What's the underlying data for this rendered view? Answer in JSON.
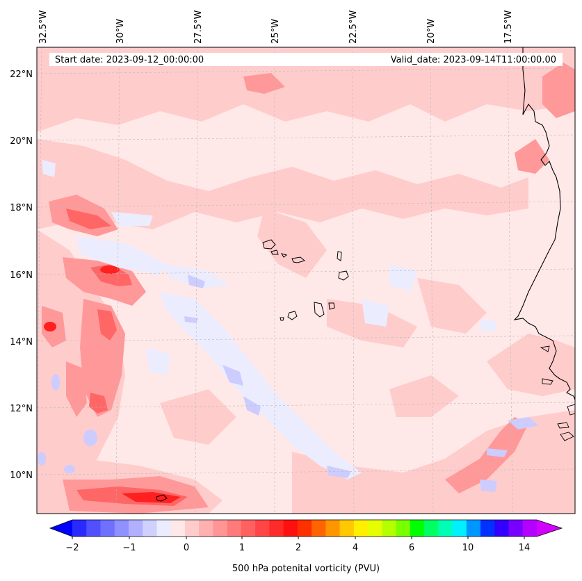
{
  "header": {
    "start_date": "Start date: 2023-09-12_00:00:00",
    "valid_date": "Valid_date: 2023-09-14T11:00:00.00"
  },
  "map": {
    "lon_labels": [
      "32.5°W",
      "30°W",
      "27.5°W",
      "25°W",
      "22.5°W",
      "20°W",
      "17.5°W"
    ],
    "lat_labels": [
      "22°N",
      "20°N",
      "18°N",
      "16°N",
      "14°N",
      "12°N",
      "10°N"
    ],
    "field_colors": {
      "background": "#ffe8e8",
      "light_red": "#ffcccc",
      "mid_red": "#ff9999",
      "strong_red": "#ff5555",
      "max_red": "#ff2020",
      "light_blue": "#ececff",
      "mid_blue": "#ccccff",
      "strong_blue": "#aaaaff"
    }
  },
  "colorbar": {
    "label": "500 hPa potenital vorticity (PVU)",
    "tick_labels": [
      "−2",
      "−1",
      "0",
      "1",
      "2",
      "4",
      "6",
      "10",
      "14"
    ],
    "colors": [
      "#0000ff",
      "#2a2aff",
      "#5050ff",
      "#7070ff",
      "#9090ff",
      "#b0b0ff",
      "#d0d0ff",
      "#ececff",
      "#ffe8e8",
      "#ffcccc",
      "#ffb0b0",
      "#ff9595",
      "#ff7a7a",
      "#ff6060",
      "#ff4545",
      "#ff2a2a",
      "#ff1010",
      "#ff3000",
      "#ff6400",
      "#ff9600",
      "#ffc800",
      "#fff000",
      "#e6ff00",
      "#b4ff00",
      "#78ff00",
      "#00ff00",
      "#00ff64",
      "#00ffb4",
      "#00f0ff",
      "#0096ff",
      "#0032ff",
      "#3200ff",
      "#7800ff",
      "#b400ff",
      "#d200ff"
    ]
  }
}
